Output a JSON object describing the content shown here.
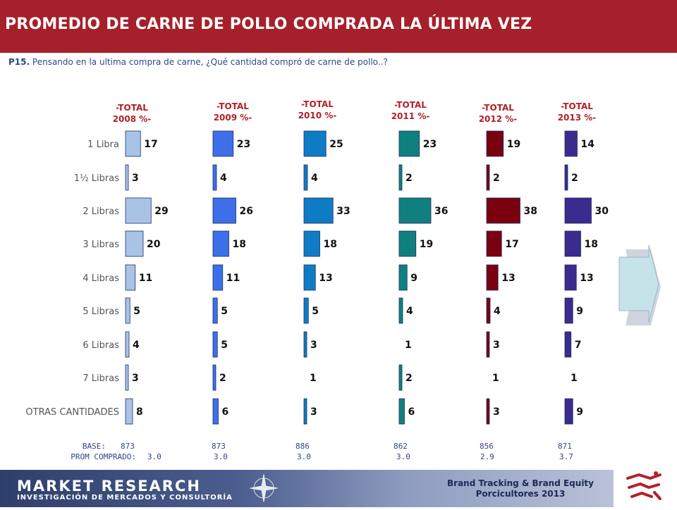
{
  "header": {
    "title": "PROMEDIO DE CARNE DE POLLO COMPRADA LA ÚLTIMA VEZ"
  },
  "question": {
    "number": "P15.",
    "text": "Pensando en la ultima compra de carne, ¿Qué cantidad compró de carne de pollo..?"
  },
  "footer": {
    "brand_main": "MARKET RESEARCH",
    "brand_sub": "INVESTIGACIÓN DE MERCADOS Y CONSULTORÍA",
    "line1": "Brand Tracking & Brand Equity",
    "line2": "Porcicultores 2013"
  },
  "icons": {
    "next": "chevron-right-icon",
    "compass": "compass-rose-icon",
    "logo": "pig-logo-icon"
  },
  "colors": {
    "header_bg": "#a5202a",
    "text_blue": "#2b4a8a"
  },
  "chart_data": {
    "type": "bar",
    "orientation": "horizontal",
    "categories": [
      "1 Libra",
      "1½ Libras",
      "2 Libras",
      "3 Libras",
      "4 Libras",
      "5 Libras",
      "6 Libras",
      "7 Libras",
      "OTRAS CANTIDADES"
    ],
    "series": [
      {
        "name": "-TOTAL 2008 %-",
        "name_lines": [
          "-TOTAL",
          "2008 %-"
        ],
        "color": "#a9c3e6",
        "values": [
          17,
          3,
          29,
          20,
          11,
          5,
          4,
          3,
          8
        ],
        "base": "873",
        "prom": "3.0"
      },
      {
        "name": "-TOTAL 2009 %-",
        "name_lines": [
          "-TOTAL",
          "2009 %-"
        ],
        "color": "#3d6fe8",
        "values": [
          23,
          4,
          26,
          18,
          11,
          5,
          5,
          2,
          6
        ],
        "base": "873",
        "prom": "3.0"
      },
      {
        "name": "-TOTAL 2010 %-",
        "name_lines": [
          "-TOTAL",
          "2010 %-"
        ],
        "color": "#0e7cc4",
        "values": [
          25,
          4,
          33,
          18,
          13,
          5,
          3,
          1,
          3
        ],
        "base": "886",
        "prom": "3.0"
      },
      {
        "name": "-TOTAL 2011 %-",
        "name_lines": [
          "-TOTAL",
          "2011 %-"
        ],
        "color": "#107f7f",
        "values": [
          23,
          2,
          36,
          19,
          9,
          4,
          1,
          2,
          6
        ],
        "base": "862",
        "prom": "3.0"
      },
      {
        "name": "-TOTAL 2012 %-",
        "name_lines": [
          "-TOTAL",
          "2012 %-"
        ],
        "color": "#7a0010",
        "values": [
          19,
          2,
          38,
          17,
          13,
          4,
          3,
          1,
          3
        ],
        "base": "856",
        "prom": "2.9"
      },
      {
        "name": "-TOTAL 2013 %-",
        "name_lines": [
          "-TOTAL",
          "2013 %-"
        ],
        "color": "#3a2c8e",
        "values": [
          14,
          2,
          30,
          18,
          13,
          9,
          7,
          1,
          9
        ],
        "base": "871",
        "prom": "3.7"
      }
    ],
    "base_label": "BASE:",
    "prom_label": "PROM COMPRADO:"
  }
}
